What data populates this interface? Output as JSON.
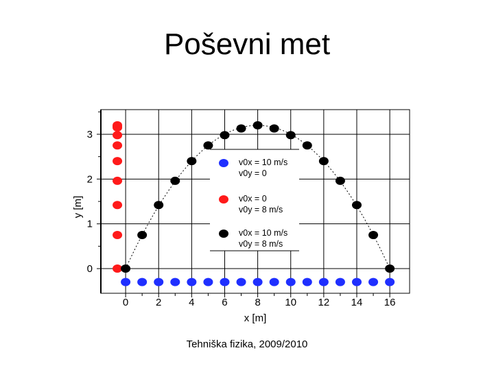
{
  "slide": {
    "title": "Poševni met",
    "footer": "Tehniška fizika, 2009/2010"
  },
  "chart_data": {
    "type": "scatter",
    "xlabel": "x [m]",
    "ylabel": "y [m]",
    "xlim": [
      -1.5,
      17.2
    ],
    "ylim": [
      -0.55,
      3.55
    ],
    "xticks": [
      "0",
      "2",
      "4",
      "6",
      "8",
      "10",
      "12",
      "14",
      "16"
    ],
    "yticks": [
      "0",
      "1",
      "2",
      "3"
    ],
    "grid": true,
    "legend_position": "top-right",
    "colors": {
      "blue": "#1f2fff",
      "red": "#ff1a1a",
      "black": "#000000"
    },
    "series": [
      {
        "legend": [
          "v0x = 10 m/s",
          "v0y = 0"
        ],
        "color": "blue",
        "x": [
          0,
          1,
          2,
          3,
          4,
          5,
          6,
          7,
          8,
          9,
          10,
          11,
          12,
          13,
          14,
          15,
          16
        ],
        "y": [
          -0.3,
          -0.3,
          -0.3,
          -0.3,
          -0.3,
          -0.3,
          -0.3,
          -0.3,
          -0.3,
          -0.3,
          -0.3,
          -0.3,
          -0.3,
          -0.3,
          -0.3,
          -0.3,
          -0.3
        ]
      },
      {
        "legend": [
          "v0x = 0",
          "v0y = 8 m/s"
        ],
        "color": "red",
        "x": [
          -0.5,
          -0.5,
          -0.5,
          -0.5,
          -0.5,
          -0.5,
          -0.5,
          -0.5,
          -0.5,
          -0.5
        ],
        "y": [
          0,
          0.75,
          1.42,
          1.96,
          2.4,
          2.75,
          2.98,
          3.15,
          3.2,
          3.18
        ]
      },
      {
        "legend": [
          "v0x = 10 m/s",
          "v0y = 8 m/s"
        ],
        "color": "black",
        "x": [
          0,
          1,
          2,
          3,
          4,
          5,
          6,
          7,
          8,
          9,
          10,
          11,
          12,
          13,
          14,
          15,
          16
        ],
        "y": [
          0,
          0.75,
          1.42,
          1.96,
          2.4,
          2.75,
          2.98,
          3.13,
          3.2,
          3.13,
          2.98,
          2.75,
          2.4,
          1.96,
          1.42,
          0.75,
          0
        ]
      }
    ]
  }
}
